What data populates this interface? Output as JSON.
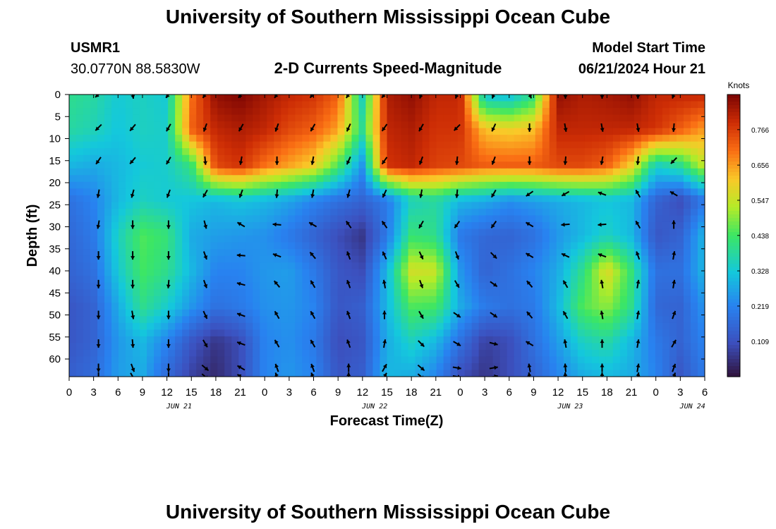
{
  "header": {
    "title": "University of Southern Mississippi Ocean Cube",
    "station_id": "USMR1",
    "station_coords": "30.0770N  88.5830W",
    "subtitle": "2-D Currents Speed-Magnitude",
    "model_start_label": "Model Start Time",
    "model_start_value": "06/21/2024 Hour 21"
  },
  "footer": {
    "title": "University of Southern Mississippi Ocean Cube"
  },
  "chart_data": {
    "type": "heatmap",
    "title": "2-D Currents Speed-Magnitude",
    "xlabel": "Forecast Time(Z)",
    "ylabel": "Depth (ft)",
    "x_tick_labels": [
      "0",
      "3",
      "6",
      "9",
      "12",
      "15",
      "18",
      "21",
      "0",
      "3",
      "6",
      "9",
      "12",
      "15",
      "18",
      "21",
      "0",
      "3",
      "6",
      "9",
      "12",
      "15",
      "18",
      "21",
      "0",
      "3",
      "6"
    ],
    "date_labels": [
      {
        "text": "JUN 21",
        "tick_index": 4.5
      },
      {
        "text": "JUN 22",
        "tick_index": 12.5
      },
      {
        "text": "JUN 23",
        "tick_index": 20.5
      },
      {
        "text": "JUN 24",
        "tick_index": 25.5
      }
    ],
    "y_ticks": [
      0,
      5,
      10,
      15,
      20,
      25,
      30,
      35,
      40,
      45,
      50,
      55,
      60
    ],
    "ylim": [
      0,
      64
    ],
    "colorbar": {
      "label": "Knots",
      "ticks": [
        "0.766",
        "0.656",
        "0.547",
        "0.438",
        "0.328",
        "0.219",
        "0.109"
      ],
      "range": [
        0.0,
        0.875
      ]
    },
    "speed_grid": {
      "depths_ft": [
        0,
        8,
        16,
        24,
        32,
        40,
        48,
        56,
        64
      ],
      "times_h": [
        0,
        3,
        6,
        9,
        12,
        15,
        18,
        21,
        24,
        27,
        30,
        33,
        36,
        39,
        42,
        45,
        48,
        51,
        54,
        57,
        60,
        63,
        66,
        69,
        72,
        75,
        78
      ],
      "values": [
        [
          0.4,
          0.38,
          0.33,
          0.35,
          0.33,
          0.7,
          0.85,
          0.87,
          0.83,
          0.8,
          0.78,
          0.72,
          0.35,
          0.82,
          0.85,
          0.8,
          0.8,
          0.32,
          0.3,
          0.4,
          0.85,
          0.82,
          0.83,
          0.85,
          0.8,
          0.8,
          0.8
        ],
        [
          0.38,
          0.36,
          0.32,
          0.35,
          0.34,
          0.72,
          0.8,
          0.82,
          0.8,
          0.75,
          0.72,
          0.65,
          0.4,
          0.8,
          0.82,
          0.78,
          0.78,
          0.62,
          0.6,
          0.62,
          0.8,
          0.8,
          0.8,
          0.8,
          0.78,
          0.72,
          0.65
        ],
        [
          0.3,
          0.28,
          0.3,
          0.33,
          0.34,
          0.42,
          0.75,
          0.78,
          0.7,
          0.65,
          0.6,
          0.45,
          0.25,
          0.78,
          0.8,
          0.76,
          0.75,
          0.72,
          0.72,
          0.72,
          0.75,
          0.75,
          0.72,
          0.6,
          0.35,
          0.4,
          0.55
        ],
        [
          0.18,
          0.22,
          0.3,
          0.35,
          0.33,
          0.32,
          0.3,
          0.32,
          0.3,
          0.27,
          0.22,
          0.18,
          0.15,
          0.2,
          0.35,
          0.38,
          0.3,
          0.28,
          0.24,
          0.26,
          0.28,
          0.3,
          0.32,
          0.3,
          0.15,
          0.1,
          0.2
        ],
        [
          0.16,
          0.2,
          0.35,
          0.45,
          0.42,
          0.28,
          0.26,
          0.25,
          0.24,
          0.2,
          0.15,
          0.1,
          0.06,
          0.2,
          0.42,
          0.4,
          0.2,
          0.16,
          0.15,
          0.18,
          0.25,
          0.3,
          0.35,
          0.3,
          0.12,
          0.15,
          0.3
        ],
        [
          0.15,
          0.18,
          0.33,
          0.44,
          0.4,
          0.3,
          0.22,
          0.22,
          0.25,
          0.26,
          0.2,
          0.12,
          0.1,
          0.3,
          0.56,
          0.55,
          0.25,
          0.15,
          0.18,
          0.22,
          0.28,
          0.4,
          0.58,
          0.42,
          0.18,
          0.18,
          0.3
        ],
        [
          0.12,
          0.15,
          0.28,
          0.4,
          0.34,
          0.25,
          0.18,
          0.2,
          0.24,
          0.25,
          0.22,
          0.12,
          0.14,
          0.3,
          0.45,
          0.44,
          0.28,
          0.2,
          0.18,
          0.2,
          0.3,
          0.45,
          0.5,
          0.4,
          0.16,
          0.15,
          0.25
        ],
        [
          0.12,
          0.15,
          0.25,
          0.3,
          0.22,
          0.12,
          0.06,
          0.1,
          0.22,
          0.24,
          0.2,
          0.1,
          0.12,
          0.28,
          0.35,
          0.3,
          0.18,
          0.08,
          0.1,
          0.18,
          0.26,
          0.35,
          0.38,
          0.3,
          0.2,
          0.15,
          0.22
        ],
        [
          0.14,
          0.17,
          0.26,
          0.28,
          0.16,
          0.08,
          0.04,
          0.1,
          0.22,
          0.25,
          0.22,
          0.12,
          0.14,
          0.3,
          0.28,
          0.22,
          0.1,
          0.06,
          0.1,
          0.15,
          0.22,
          0.28,
          0.3,
          0.28,
          0.22,
          0.12,
          0.2
        ]
      ]
    },
    "vectors": {
      "depths_ft": [
        0,
        7.5,
        15,
        22.5,
        29.5,
        36.5,
        43,
        50,
        56.5,
        62,
        64
      ],
      "times_h": [
        3.6,
        7.8,
        12.2,
        16.7,
        21.1,
        25.5,
        29.9,
        34.3,
        38.7,
        43.2,
        47.6,
        52.1,
        56.5,
        60.9,
        65.4,
        69.8,
        74.2
      ],
      "directions_deg": [
        [
          230,
          170,
          220,
          215,
          220,
          215,
          220,
          215,
          220,
          200,
          200,
          200,
          155,
          180,
          180,
          180,
          200
        ],
        [
          225,
          220,
          210,
          200,
          210,
          200,
          210,
          205,
          215,
          210,
          225,
          205,
          180,
          170,
          170,
          170,
          185
        ],
        [
          215,
          220,
          210,
          175,
          190,
          180,
          190,
          205,
          215,
          200,
          185,
          200,
          180,
          185,
          190,
          185,
          225
        ],
        [
          190,
          195,
          200,
          210,
          200,
          185,
          190,
          195,
          205,
          190,
          185,
          210,
          235,
          240,
          290,
          330,
          300
        ],
        [
          190,
          180,
          180,
          165,
          300,
          275,
          300,
          325,
          325,
          210,
          215,
          215,
          300,
          265,
          265,
          330,
          360
        ],
        [
          180,
          180,
          180,
          160,
          275,
          290,
          320,
          340,
          335,
          155,
          160,
          135,
          300,
          295,
          290,
          340,
          10
        ],
        [
          180,
          180,
          185,
          160,
          285,
          320,
          330,
          340,
          350,
          160,
          150,
          125,
          320,
          330,
          350,
          10,
          10
        ],
        [
          180,
          170,
          180,
          155,
          290,
          330,
          330,
          340,
          360,
          150,
          125,
          125,
          320,
          330,
          350,
          10,
          20
        ],
        [
          180,
          175,
          180,
          150,
          290,
          330,
          330,
          340,
          10,
          135,
          120,
          105,
          300,
          350,
          360,
          10,
          30
        ],
        [
          180,
          160,
          180,
          130,
          300,
          340,
          340,
          360,
          30,
          130,
          100,
          80,
          350,
          355,
          360,
          10,
          20
        ],
        [
          180,
          150,
          180,
          130,
          300,
          340,
          340,
          360,
          30,
          130,
          100,
          80,
          350,
          355,
          360,
          10,
          20
        ]
      ]
    }
  }
}
